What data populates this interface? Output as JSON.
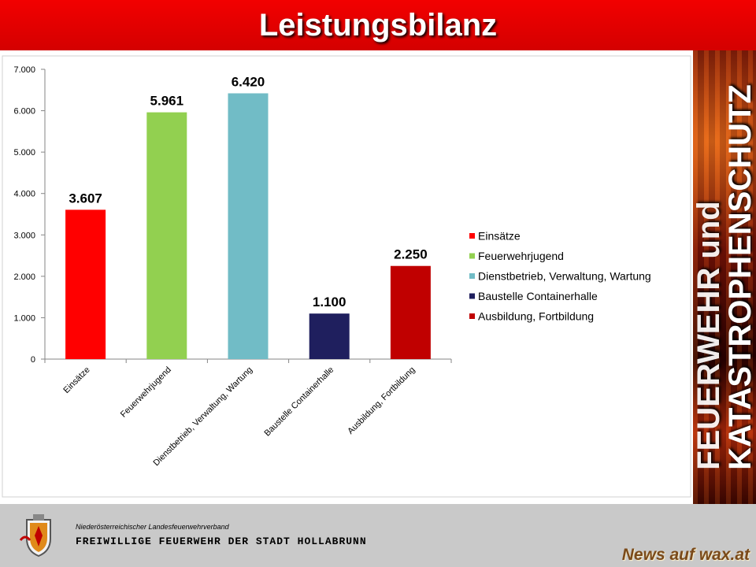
{
  "title": "Leistungsbilanz",
  "side_banner": {
    "line1": "FEUERWEHR und",
    "line2": "KATASTROPHENSCHUTZ"
  },
  "chart_data": {
    "type": "bar",
    "categories": [
      "Einsätze",
      "Feuerwehrjugend",
      "Dienstbetrieb, Verwaltung, Wartung",
      "Baustelle Containerhalle",
      "Ausbildung, Fortbildung"
    ],
    "values": [
      3607,
      5961,
      6420,
      1100,
      2250
    ],
    "data_labels": [
      "3.607",
      "5.961",
      "6.420",
      "1.100",
      "2.250"
    ],
    "colors": [
      "#ff0000",
      "#92d050",
      "#71bcc6",
      "#1f1f5e",
      "#c00000"
    ],
    "ylim": [
      0,
      7000
    ],
    "y_ticks": [
      0,
      1000,
      2000,
      3000,
      4000,
      5000,
      6000,
      7000
    ],
    "y_tick_labels": [
      "0",
      "1.000",
      "2.000",
      "3.000",
      "4.000",
      "5.000",
      "6.000",
      "7.000"
    ],
    "legend": [
      "Einsätze",
      "Feuerwehrjugend",
      "Dienstbetrieb, Verwaltung, Wartung",
      "Baustelle Containerhalle",
      "Ausbildung, Fortbildung"
    ],
    "legend_position": "right",
    "grid": false
  },
  "footer": {
    "org_small": "Niederösterreichischer Landesfeuerwehrverband",
    "org_big": "FREIWILLIGE FEUERWEHR DER STADT HOLLABRUNN",
    "watermark": "News auf wax.at"
  },
  "colors": {
    "title_bar": "#e00000",
    "footer_bg": "#c9c9c9"
  }
}
